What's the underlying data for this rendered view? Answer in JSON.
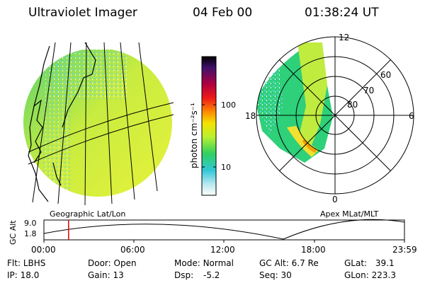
{
  "header": {
    "instrument": "Ultraviolet Imager",
    "date": "04 Feb 00",
    "time": "01:38:24 UT"
  },
  "colorbar": {
    "label": "photon cm⁻²s⁻¹",
    "ticks": [
      "100",
      "10"
    ],
    "colors": [
      "#000000",
      "#400060",
      "#a00050",
      "#e01020",
      "#ff7a00",
      "#f0e000",
      "#b8f030",
      "#20d060",
      "#40c8e0",
      "#b0e8f0",
      "#ffffff"
    ]
  },
  "panels": {
    "geo_label": "Geographic Lat/Lon",
    "apex_label": "Apex MLat/MLT",
    "polar": {
      "mlt": [
        "12",
        "18",
        "6",
        "0"
      ],
      "mlat": [
        "60",
        "70",
        "80"
      ]
    }
  },
  "timeline": {
    "axis_label": "GC Alt",
    "y_ticks": [
      "9.0",
      "1.8"
    ],
    "x_ticks": [
      "00:00",
      "06:00",
      "12:00",
      "18:00",
      "23:59"
    ],
    "current_time_fraction": 0.0684
  },
  "status": {
    "flt_label": "Flt:",
    "flt": "LBHS",
    "door_label": "Door:",
    "door": "Open",
    "mode_label": "Mode:",
    "mode": "Normal",
    "gcalt_label": "GC Alt:",
    "gcalt": "6.7 Re",
    "glat_label": "GLat:",
    "glat": "39.1",
    "ip_label": "IP:",
    "ip": "18.0",
    "gain_label": "Gain:",
    "gain": "13",
    "dsp_label": "Dsp:",
    "dsp": "-5.2",
    "seq_label": "Seq:",
    "seq": "30",
    "glon_label": "GLon:",
    "glon": "223.3"
  }
}
